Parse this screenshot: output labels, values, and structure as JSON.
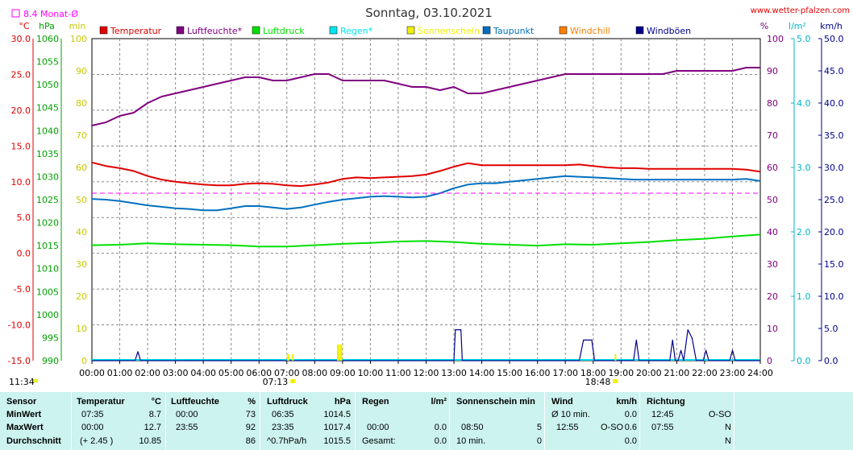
{
  "header": {
    "title": "Sonntag, 03.10.2021",
    "site": "www.wetter-pfalzen.com",
    "monat_avg_label": "8.4 Monat-Ø"
  },
  "axes": {
    "left_units": [
      "°C",
      "hPa",
      "min"
    ],
    "right_units": [
      "%",
      "l/m²",
      "km/h"
    ],
    "temp_ticks": [
      "30.0",
      "25.0",
      "20.0",
      "15.0",
      "10.0",
      "5.0",
      "0.0",
      "-5.0",
      "-10.0",
      "-15.0"
    ],
    "hpa_ticks": [
      "1060",
      "1055",
      "1050",
      "1045",
      "1040",
      "1035",
      "1030",
      "1025",
      "1020",
      "1015",
      "1010",
      "1005",
      "1000",
      "995",
      "990"
    ],
    "min_ticks": [
      "100",
      "90",
      "80",
      "70",
      "60",
      "50",
      "40",
      "30",
      "20",
      "10",
      "0"
    ],
    "pct_ticks": [
      "100",
      "90",
      "80",
      "70",
      "60",
      "50",
      "40",
      "30",
      "20",
      "10",
      "0"
    ],
    "rain_ticks": [
      "5.0",
      "4.0",
      "3.0",
      "2.0",
      "1.0",
      "0.0"
    ],
    "wind_ticks": [
      "50.0",
      "45.0",
      "40.0",
      "35.0",
      "30.0",
      "25.0",
      "20.0",
      "15.0",
      "10.0",
      "5.0",
      "0.0"
    ],
    "time_ticks": [
      "00:00",
      "01:00",
      "02:00",
      "03:00",
      "04:00",
      "05:00",
      "06:00",
      "07:00",
      "08:00",
      "09:00",
      "10:00",
      "11:00",
      "12:00",
      "13:00",
      "14:00",
      "15:00",
      "16:00",
      "17:00",
      "18:00",
      "19:00",
      "20:00",
      "21:00",
      "22:00",
      "23:00",
      "24:00"
    ],
    "sunrise": "07:13",
    "sunset": "18:48",
    "clock": "11:34"
  },
  "colors": {
    "temperatur": "#e00000",
    "luftfeuchte": "#800080",
    "luftdruck": "#00e000",
    "regen": "#00e5ee",
    "sonnenschein": "#f0f000",
    "taupunkt": "#0070c0",
    "windchill": "#ff8000",
    "windboeen": "#00008b",
    "monat_avg": "#ff00ff",
    "hpa_axis": "#00a000",
    "min_axis": "#c8c800",
    "rain_axis": "#00b5c5",
    "table_bg": "#ccf3ee"
  },
  "chart_data": {
    "type": "line",
    "title": "Sonntag, 03.10.2021",
    "x_unit": "hours",
    "xlim": [
      0,
      24
    ],
    "series": [
      {
        "name": "Temperatur",
        "axis": "°C",
        "ylim": [
          -15,
          30
        ],
        "x": [
          0,
          0.5,
          1,
          1.5,
          2,
          2.5,
          3,
          3.5,
          4,
          4.5,
          5,
          5.5,
          6,
          6.5,
          7,
          7.5,
          8,
          8.5,
          9,
          9.5,
          10,
          10.5,
          11,
          11.5,
          12,
          12.5,
          13,
          13.5,
          14,
          14.5,
          15,
          15.5,
          16,
          16.5,
          17,
          17.5,
          18,
          18.5,
          19,
          19.5,
          20,
          20.5,
          21,
          21.5,
          22,
          22.5,
          23,
          23.5,
          24
        ],
        "values": [
          12.7,
          12.2,
          11.9,
          11.5,
          10.8,
          10.3,
          10.0,
          9.8,
          9.6,
          9.5,
          9.5,
          9.7,
          9.8,
          9.7,
          9.5,
          9.4,
          9.6,
          9.9,
          10.4,
          10.6,
          10.5,
          10.6,
          10.7,
          10.8,
          11.0,
          11.5,
          12.1,
          12.6,
          12.3,
          12.3,
          12.3,
          12.3,
          12.3,
          12.3,
          12.3,
          12.4,
          12.2,
          12.0,
          11.9,
          11.9,
          11.8,
          11.8,
          11.8,
          11.8,
          11.8,
          11.8,
          11.8,
          11.7,
          11.4
        ]
      },
      {
        "name": "Luftfeuchte*",
        "axis": "%",
        "ylim": [
          0,
          100
        ],
        "x": [
          0,
          0.5,
          1,
          1.5,
          2,
          2.5,
          3,
          3.5,
          4,
          4.5,
          5,
          5.5,
          6,
          6.5,
          7,
          7.5,
          8,
          8.5,
          9,
          9.5,
          10,
          10.5,
          11,
          11.5,
          12,
          12.5,
          13,
          13.5,
          14,
          14.5,
          15,
          15.5,
          16,
          16.5,
          17,
          17.5,
          18,
          18.5,
          19,
          19.5,
          20,
          20.5,
          21,
          21.5,
          22,
          22.5,
          23,
          23.5,
          24
        ],
        "values": [
          73,
          74,
          76,
          77,
          80,
          82,
          83,
          84,
          85,
          86,
          87,
          88,
          88,
          87,
          87,
          88,
          89,
          89,
          87,
          87,
          87,
          87,
          86,
          85,
          85,
          84,
          85,
          83,
          83,
          84,
          85,
          86,
          87,
          88,
          89,
          89,
          89,
          89,
          89,
          89,
          89,
          89,
          90,
          90,
          90,
          90,
          90,
          91,
          91
        ]
      },
      {
        "name": "Luftdruck",
        "axis": "hPa",
        "ylim": [
          990,
          1060
        ],
        "x": [
          0,
          1,
          2,
          3,
          4,
          5,
          6,
          7,
          8,
          9,
          10,
          11,
          12,
          13,
          14,
          15,
          16,
          17,
          18,
          19,
          20,
          21,
          22,
          23,
          24
        ],
        "values": [
          1015.1,
          1015.2,
          1015.5,
          1015.3,
          1015.2,
          1015.1,
          1014.8,
          1014.8,
          1015.1,
          1015.4,
          1015.6,
          1015.9,
          1016.0,
          1015.8,
          1015.4,
          1015.2,
          1015.0,
          1015.3,
          1015.2,
          1015.5,
          1015.8,
          1016.2,
          1016.5,
          1017.0,
          1017.4
        ]
      },
      {
        "name": "Taupunkt",
        "axis": "°C",
        "ylim": [
          -15,
          30
        ],
        "x": [
          0,
          0.5,
          1,
          1.5,
          2,
          2.5,
          3,
          3.5,
          4,
          4.5,
          5,
          5.5,
          6,
          6.5,
          7,
          7.5,
          8,
          8.5,
          9,
          9.5,
          10,
          10.5,
          11,
          11.5,
          12,
          12.5,
          13,
          13.5,
          14,
          14.5,
          15,
          15.5,
          16,
          16.5,
          17,
          17.5,
          18,
          18.5,
          19,
          19.5,
          20,
          20.5,
          21,
          21.5,
          22,
          22.5,
          23,
          23.5,
          24
        ],
        "values": [
          7.6,
          7.5,
          7.3,
          7.0,
          6.7,
          6.5,
          6.3,
          6.2,
          6.0,
          6.0,
          6.3,
          6.6,
          6.6,
          6.4,
          6.2,
          6.4,
          6.8,
          7.2,
          7.5,
          7.7,
          7.9,
          8.0,
          7.9,
          7.8,
          7.9,
          8.4,
          9.1,
          9.6,
          9.8,
          9.8,
          10.0,
          10.2,
          10.4,
          10.6,
          10.8,
          10.7,
          10.6,
          10.5,
          10.4,
          10.3,
          10.3,
          10.3,
          10.3,
          10.3,
          10.3,
          10.3,
          10.3,
          10.4,
          10.1
        ]
      },
      {
        "name": "Windböen",
        "axis": "km/h",
        "ylim": [
          0,
          50
        ],
        "x": [
          0,
          1.55,
          1.65,
          1.75,
          13,
          13.05,
          13.15,
          13.25,
          13.3,
          17.5,
          17.65,
          17.75,
          17.95,
          18.05,
          19.45,
          19.55,
          19.65,
          20.75,
          20.85,
          20.95,
          21.05,
          21.15,
          21.25,
          21.4,
          21.55,
          21.7,
          21.95,
          22.05,
          22.15,
          22.9,
          23.0,
          23.1,
          24
        ],
        "values": [
          0,
          0,
          1.4,
          0,
          0,
          4.8,
          4.8,
          4.8,
          0,
          0,
          3.2,
          3.2,
          3.2,
          0,
          0,
          3.2,
          0,
          0,
          3.2,
          0,
          0,
          1.6,
          0,
          4.8,
          3.5,
          0,
          0,
          1.6,
          0,
          0,
          1.6,
          0,
          0
        ]
      },
      {
        "name": "Sonnenschein",
        "axis": "min",
        "ylim": [
          0,
          100
        ],
        "type": "bar",
        "x": [
          7.0,
          8.8,
          8.9
        ],
        "values": [
          2,
          5,
          5
        ]
      },
      {
        "name": "Monat-Ø",
        "axis": "°C",
        "ylim": [
          -15,
          30
        ],
        "x": [
          0,
          24
        ],
        "values": [
          8.4,
          8.4
        ]
      }
    ],
    "legend": [
      "Temperatur",
      "Luftfeuchte*",
      "Luftdruck",
      "Regen*",
      "Sonnenschein",
      "Taupunkt",
      "Windchill",
      "Windböen"
    ],
    "grid": true,
    "legend_placement": "top"
  },
  "table": {
    "row_labels": [
      "Sensor",
      "MinWert",
      "MaxWert",
      "Durchschnitt"
    ],
    "temperatur": {
      "header": "Temperatur",
      "unit": "°C",
      "min_time": "07:35",
      "min_val": "8.7",
      "max_time": "00:00",
      "max_val": "12.7",
      "avg_note": "(+ 2.45 )",
      "avg_val": "10.85"
    },
    "luftfeuchte": {
      "header": "Luftfeuchte",
      "unit": "%",
      "min_time": "00:00",
      "min_val": "73",
      "max_time": "23:55",
      "max_val": "92",
      "avg_val": "86"
    },
    "luftdruck": {
      "header": "Luftdruck",
      "unit": "hPa",
      "min_time": "06:35",
      "min_val": "1014.5",
      "max_time": "23:35",
      "max_val": "1017.4",
      "avg_note": "^0.7hPa/h",
      "avg_val": "1015.5"
    },
    "regen": {
      "header": "Regen",
      "unit": "l/m²",
      "max_time": "00:00",
      "max_val": "0.0",
      "avg_note": "Gesamt:",
      "avg_val": "0.0"
    },
    "sonne": {
      "header": "Sonnenschein min",
      "max_time": "08:50",
      "max_val": "5",
      "avg_note": "10 min.",
      "avg_val": "0"
    },
    "wind": {
      "header": "Wind",
      "unit": "km/h",
      "min_note": "Ø 10 min.",
      "min_val": "0.0",
      "max_time": "12:55",
      "max_dir": "O-SO",
      "max_val": "0.6",
      "avg_val": "0.0"
    },
    "richtung": {
      "header": "Richtung",
      "min_time": "12:45",
      "min_val": "O-SO",
      "max_time": "07:55",
      "max_val": "N",
      "avg_val": "N"
    }
  }
}
